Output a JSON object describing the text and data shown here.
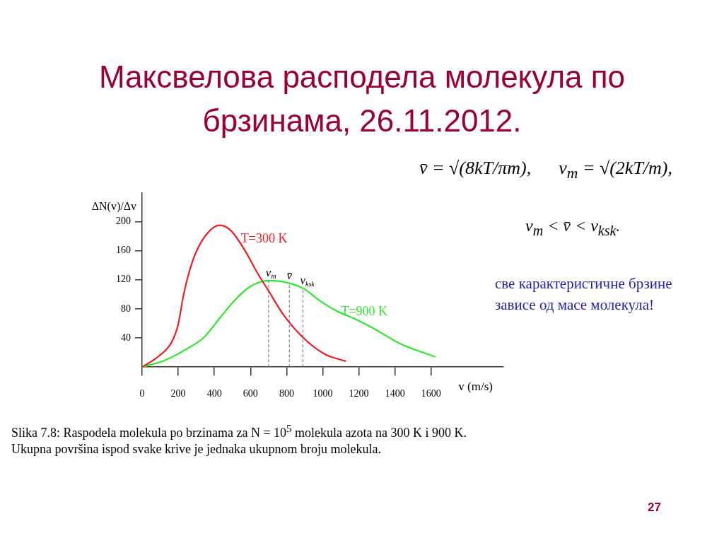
{
  "chart_data": {
    "type": "line",
    "title": "Максвелова расподела молекула по брзинама, 26.11.2012.",
    "xlabel": "v (m/s)",
    "ylabel": "ΔN(v)/Δv",
    "xlim": [
      0,
      2000
    ],
    "xticks": [
      0,
      200,
      400,
      600,
      800,
      1000,
      1200,
      1400,
      1600
    ],
    "ylim": [
      0,
      240
    ],
    "yticks": [
      40,
      80,
      120,
      160,
      200
    ],
    "grid": false,
    "legend": false,
    "marker": "none",
    "line_style": "solid",
    "series": [
      {
        "name": "T=300 K",
        "color": "#ee1c25",
        "x": [
          0,
          92,
          165,
          200,
          230,
          277,
          340,
          430,
          490,
          563,
          637,
          697,
          785,
          889,
          1010,
          1128
        ],
        "values": [
          0,
          15,
          35,
          59,
          100,
          144,
          177,
          195,
          188,
          163,
          130,
          106,
          71,
          41,
          18,
          8
        ]
      },
      {
        "name": "T=900 K",
        "color": "#2ee82e",
        "x": [
          0,
          122,
          240,
          343,
          432,
          521,
          600,
          700,
          789,
          893,
          980,
          1070,
          1180,
          1283,
          1430,
          1624
        ],
        "values": [
          0,
          9,
          24,
          41,
          68,
          94,
          111,
          119,
          117,
          108,
          92,
          78,
          66,
          53,
          32,
          14
        ]
      }
    ],
    "ref_lines": [
      {
        "axis": "x",
        "value": 700,
        "label": "v$_{m}$",
        "color": "#666666",
        "line_style": "dashed"
      },
      {
        "axis": "x",
        "value": 815,
        "label": "v̄",
        "color": "#666666",
        "line_style": "dashed"
      },
      {
        "axis": "x",
        "value": 890,
        "label": "v$_{ksk}$",
        "color": "#666666",
        "line_style": "dashed"
      }
    ],
    "annotations": [
      "v̄ = √(8kT/πm),      v$_{m}$ = √(2kT/m),",
      "v$_{m}$ < v̄ < v$_{ksk}$.",
      "све карактеристичне брзине зависе од масе молекула!",
      "Slika 7.8: Raspodela molekula po brzinama za N = 10$^{5}$ molekula azota na 300 K i 900 K.",
      "Ukupna površina ispod svake krive je jednaka ukupnom broju molekula.",
      "27"
    ]
  }
}
